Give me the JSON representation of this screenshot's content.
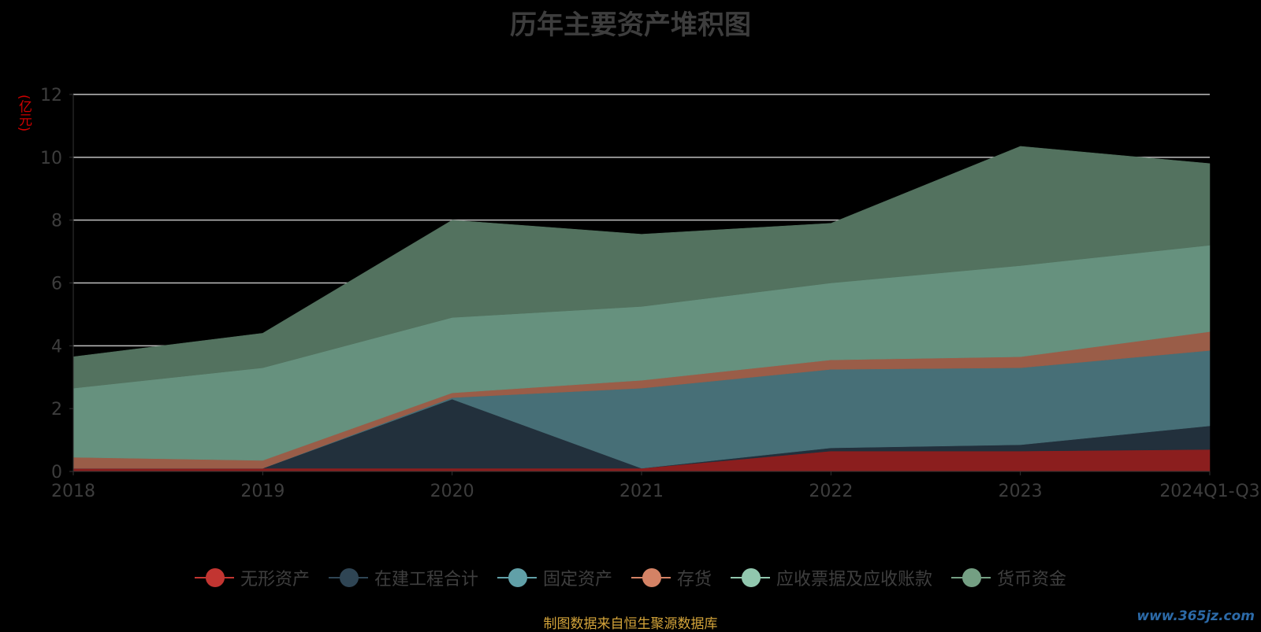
{
  "chart_data": {
    "type": "area",
    "stacked": true,
    "title": "历年主要资产堆积图",
    "unit_label": "(亿元)",
    "x": [
      "2018",
      "2019",
      "2020",
      "2021",
      "2022",
      "2023",
      "2024Q1-Q3"
    ],
    "ylim": [
      0,
      12
    ],
    "y_ticks": [
      0,
      2,
      4,
      6,
      8,
      10,
      12
    ],
    "grid": true,
    "legend_position": "bottom",
    "series": [
      {
        "name": "无形资产",
        "color": "#8b1e1e",
        "legend_color": "#c23531",
        "values": [
          0.1,
          0.1,
          0.1,
          0.1,
          0.65,
          0.65,
          0.7
        ]
      },
      {
        "name": "在建工程合计",
        "color": "#22303c",
        "legend_color": "#2f4554",
        "values": [
          0.0,
          0.0,
          2.2,
          0.0,
          0.1,
          0.2,
          0.75
        ]
      },
      {
        "name": "固定资产",
        "color": "#476f77",
        "legend_color": "#61a0a8",
        "values": [
          0.0,
          0.0,
          0.05,
          2.55,
          2.5,
          2.45,
          2.4
        ]
      },
      {
        "name": "存货",
        "color": "#9a5d48",
        "legend_color": "#d48265",
        "values": [
          0.35,
          0.25,
          0.15,
          0.25,
          0.3,
          0.35,
          0.6
        ]
      },
      {
        "name": "应收票据及应收账款",
        "color": "#66917e",
        "legend_color": "#91c7ae",
        "values": [
          2.2,
          2.95,
          2.4,
          2.35,
          2.45,
          2.9,
          2.75
        ]
      },
      {
        "name": "货币资金",
        "color": "#53725f",
        "legend_color": "#749f83",
        "values": [
          1.0,
          1.1,
          3.1,
          2.3,
          1.9,
          3.8,
          2.6
        ]
      }
    ]
  },
  "source_note": "制图数据来自恒生聚源数据库",
  "watermark": "www.365jz.com"
}
